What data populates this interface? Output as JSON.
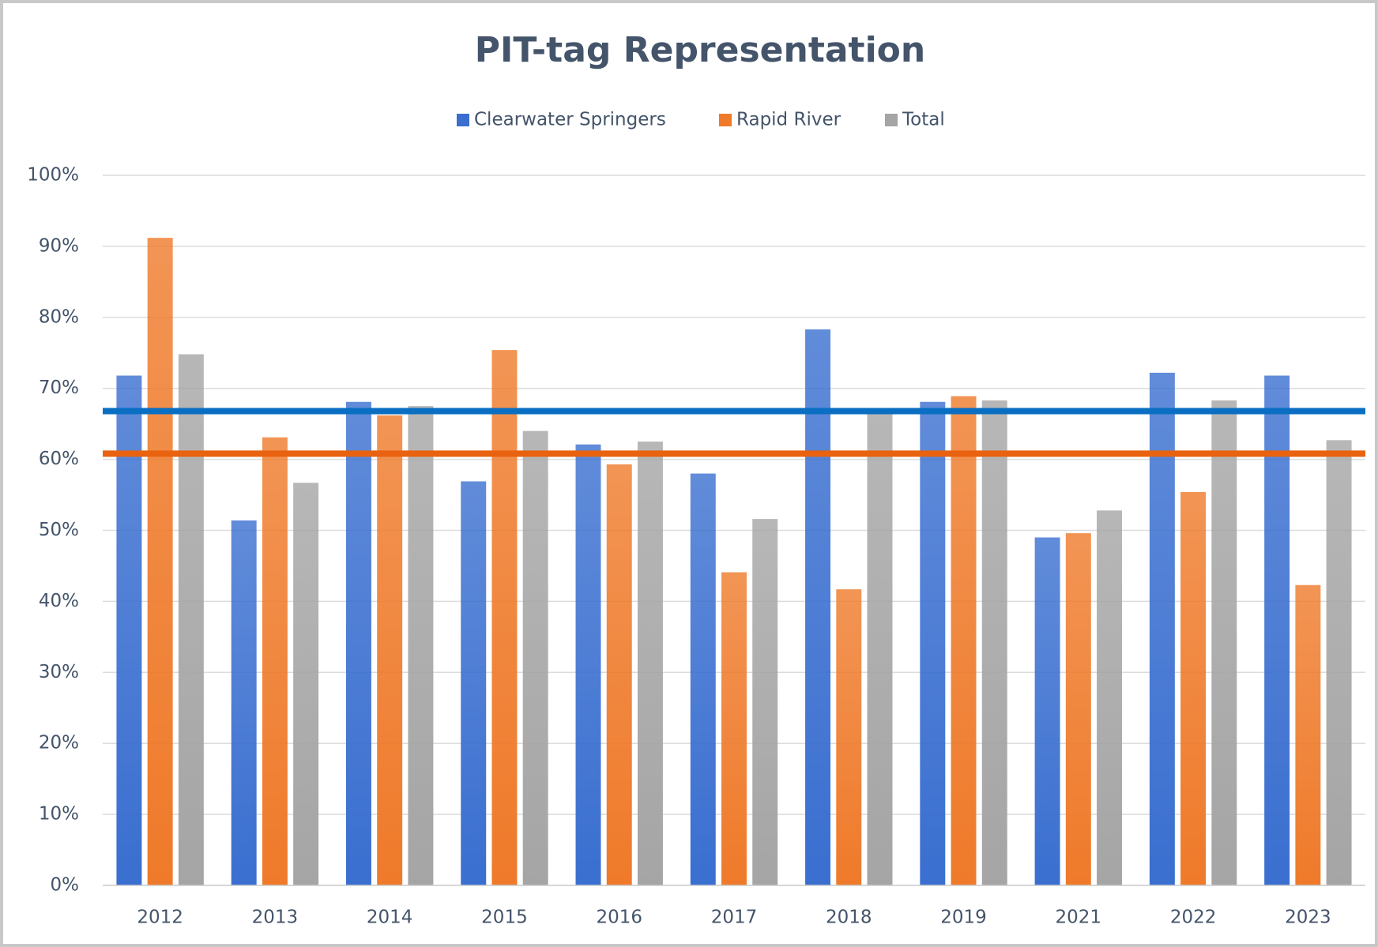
{
  "chart_data": {
    "type": "bar",
    "title": "PIT-tag Representation",
    "categories": [
      "2012",
      "2013",
      "2014",
      "2015",
      "2016",
      "2017",
      "2018",
      "2019",
      "2021",
      "2022",
      "2023"
    ],
    "series": [
      {
        "name": "Clearwater Springers",
        "color": "#3a6fd0",
        "values": [
          71.8,
          51.4,
          68.1,
          56.9,
          62.1,
          58.0,
          78.3,
          68.1,
          49.0,
          72.2,
          71.8
        ]
      },
      {
        "name": "Rapid River",
        "color": "#ef7a2a",
        "values": [
          91.2,
          63.1,
          66.2,
          75.4,
          59.3,
          44.1,
          41.7,
          68.9,
          49.6,
          55.4,
          42.3
        ]
      },
      {
        "name": "Total",
        "color": "#a5a5a5",
        "values": [
          74.8,
          56.7,
          67.5,
          64.0,
          62.5,
          51.6,
          66.6,
          68.3,
          52.8,
          68.3,
          62.7
        ]
      }
    ],
    "reference_lines": [
      {
        "value": 66.8,
        "color": "#0a6fc2"
      },
      {
        "value": 60.8,
        "color": "#e8620f"
      }
    ],
    "ylim": [
      0,
      100
    ],
    "yticks": [
      {
        "value": 0,
        "label": "0%"
      },
      {
        "value": 10,
        "label": "10%"
      },
      {
        "value": 20,
        "label": "20%"
      },
      {
        "value": 30,
        "label": "30%"
      },
      {
        "value": 40,
        "label": "40%"
      },
      {
        "value": 50,
        "label": "50%"
      },
      {
        "value": 60,
        "label": "60%"
      },
      {
        "value": 70,
        "label": "70%"
      },
      {
        "value": 80,
        "label": "80%"
      },
      {
        "value": 90,
        "label": "90%"
      },
      {
        "value": 100,
        "label": "100%"
      }
    ],
    "grid": true,
    "legend": "top"
  }
}
